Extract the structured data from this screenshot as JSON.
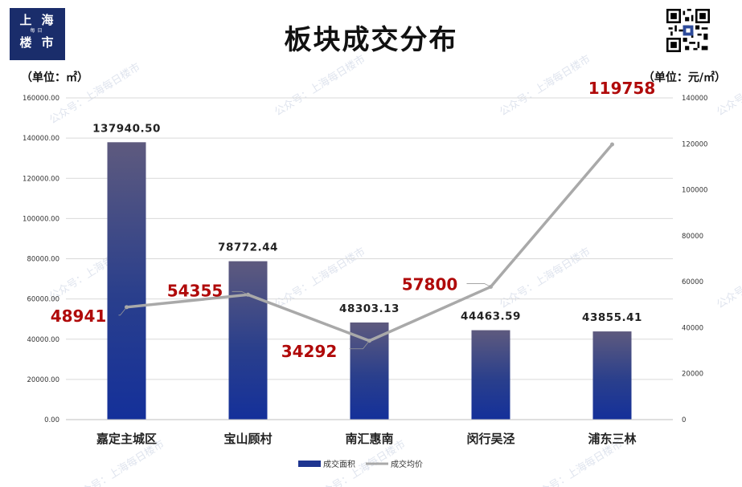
{
  "logo": {
    "line1": "上海",
    "line2": "每日",
    "line3": "楼市"
  },
  "title": "板块成交分布",
  "unit_left": "（单位：㎡）",
  "unit_right": "（单位：元/㎡）",
  "watermark": "公众号：上海每日楼市",
  "colors": {
    "bar_top": "#5e5a7e",
    "bar_bottom": "#14309a",
    "line": "#a9a9a9",
    "label_red": "#b00a0a",
    "title": "#111111"
  },
  "chart_data": {
    "type": "bar",
    "categories": [
      "嘉定主城区",
      "宝山顾村",
      "南汇惠南",
      "闵行吴泾",
      "浦东三林"
    ],
    "series": [
      {
        "name": "成交面积",
        "type": "bar",
        "axis": "left",
        "values": [
          137940.5,
          78772.44,
          48303.13,
          44463.59,
          43855.41
        ],
        "labels": [
          "137940.50",
          "78772.44",
          "48303.13",
          "44463.59",
          "43855.41"
        ]
      },
      {
        "name": "成交均价",
        "type": "line",
        "axis": "right",
        "values": [
          48941,
          54355,
          34292,
          57800,
          119758
        ],
        "labels": [
          "48941",
          "54355",
          "34292",
          "57800",
          "119758"
        ]
      }
    ],
    "y_left": {
      "min": 0,
      "max": 160000,
      "ticks": [
        "0.00",
        "20000.00",
        "40000.00",
        "60000.00",
        "80000.00",
        "100000.00",
        "120000.00",
        "140000.00",
        "160000.00"
      ]
    },
    "y_right": {
      "min": 0,
      "max": 140000,
      "ticks": [
        "0",
        "20000",
        "40000",
        "60000",
        "80000",
        "100000",
        "120000",
        "140000"
      ]
    },
    "legend": "bottom"
  }
}
